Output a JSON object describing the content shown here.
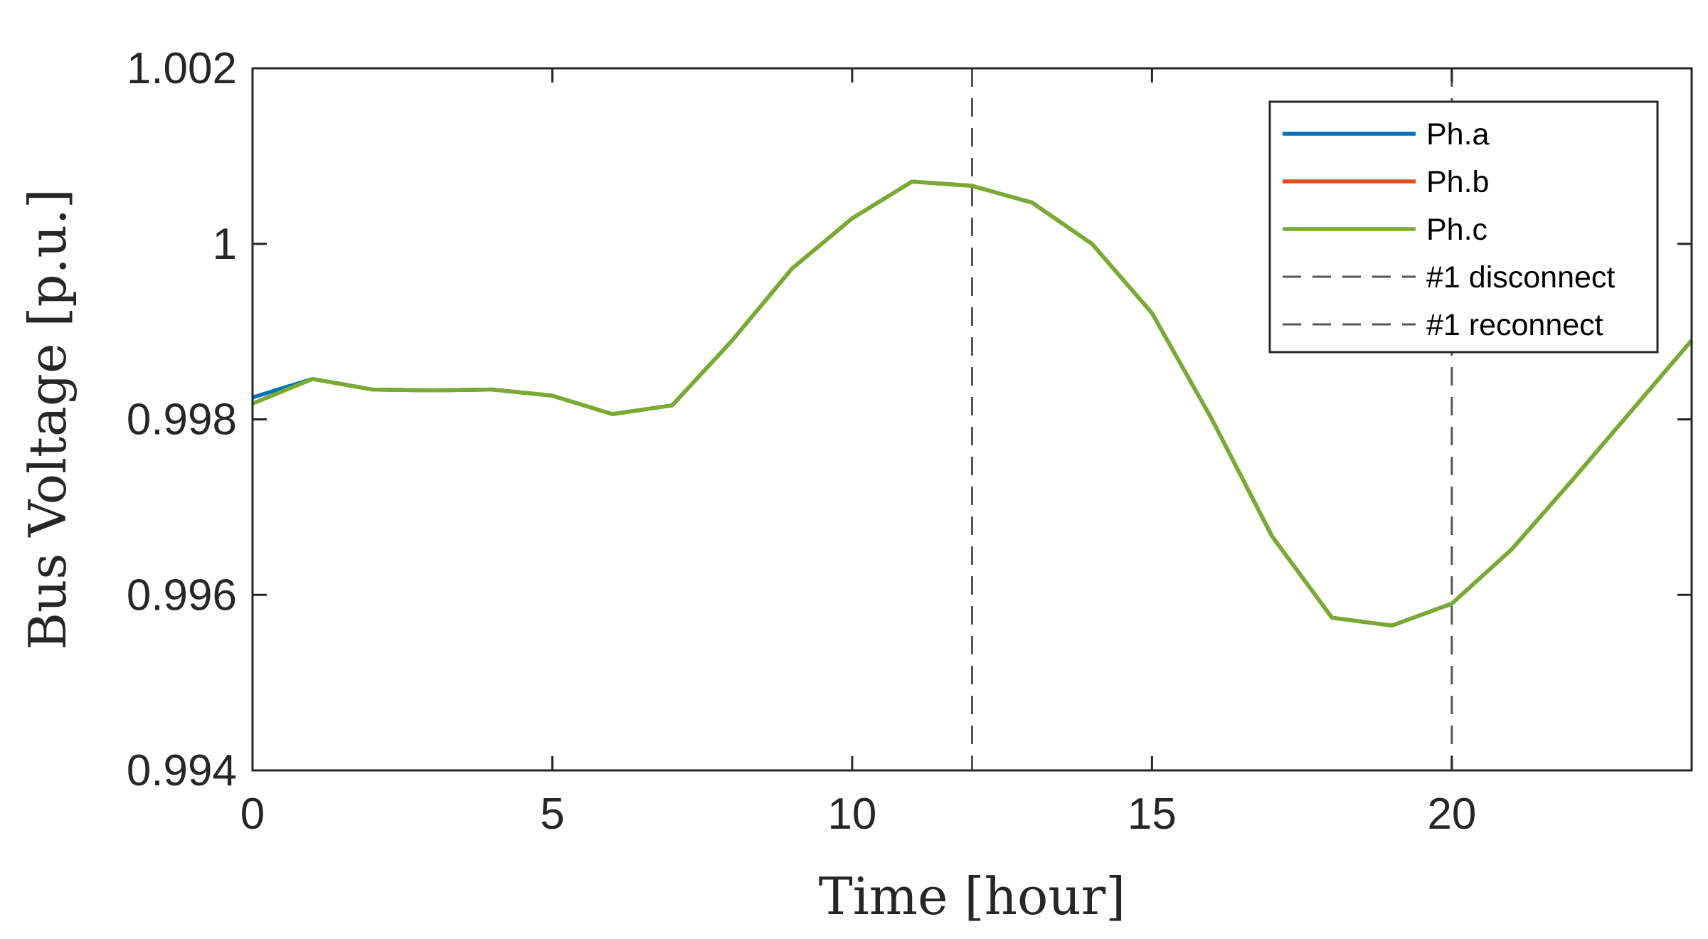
{
  "chart_data": {
    "type": "line",
    "xlabel": "Time [hour]",
    "ylabel": "Bus Voltage [p.u.]",
    "xlim": [
      0,
      24
    ],
    "ylim": [
      0.994,
      1.002
    ],
    "x_ticks": [
      0,
      5,
      10,
      15,
      20
    ],
    "x_tick_labels": [
      "0",
      "5",
      "10",
      "15",
      "20"
    ],
    "y_ticks": [
      0.994,
      0.996,
      0.998,
      1.0,
      1.002
    ],
    "y_tick_labels": [
      "0.994",
      "0.996",
      "0.998",
      "1",
      "1.002"
    ],
    "grid": false,
    "legend_position": "top-right",
    "x": [
      0,
      1,
      2,
      3,
      4,
      5,
      6,
      7,
      8,
      9,
      10,
      11,
      12,
      13,
      14,
      15,
      16,
      17,
      18,
      19,
      20,
      21,
      22,
      23,
      24
    ],
    "series": [
      {
        "name": "Ph.a",
        "color": "#0072BD",
        "values": [
          0.99825,
          0.99846,
          0.99834,
          0.99833,
          0.99834,
          0.99827,
          0.99806,
          0.99816,
          0.9989,
          0.99972,
          1.00029,
          1.00071,
          1.00066,
          1.00047,
          1.0,
          0.99921,
          0.998,
          0.99667,
          0.99574,
          0.99565,
          0.9959,
          0.99652,
          0.9973,
          0.9981,
          0.9989
        ]
      },
      {
        "name": "Ph.b",
        "color": "#D95319",
        "values": [
          0.99818,
          0.99846,
          0.99834,
          0.99833,
          0.99834,
          0.99827,
          0.99806,
          0.99816,
          0.9989,
          0.99972,
          1.00029,
          1.00071,
          1.00066,
          1.00047,
          1.0,
          0.99921,
          0.998,
          0.99667,
          0.99574,
          0.99565,
          0.9959,
          0.99652,
          0.9973,
          0.9981,
          0.9989
        ]
      },
      {
        "name": "Ph.c",
        "color": "#77AC30",
        "values": [
          0.99818,
          0.99846,
          0.99834,
          0.99833,
          0.99834,
          0.99827,
          0.99806,
          0.99816,
          0.9989,
          0.99972,
          1.00029,
          1.00071,
          1.00066,
          1.00047,
          1.0,
          0.99921,
          0.998,
          0.99667,
          0.99574,
          0.99565,
          0.9959,
          0.99652,
          0.9973,
          0.9981,
          0.9989
        ]
      }
    ],
    "vertical_lines": [
      {
        "name": "#1 disconnect",
        "x": 12,
        "color": "#555555",
        "style": "dashed"
      },
      {
        "name": "#1 reconnect",
        "x": 20,
        "color": "#555555",
        "style": "dashed"
      }
    ]
  }
}
